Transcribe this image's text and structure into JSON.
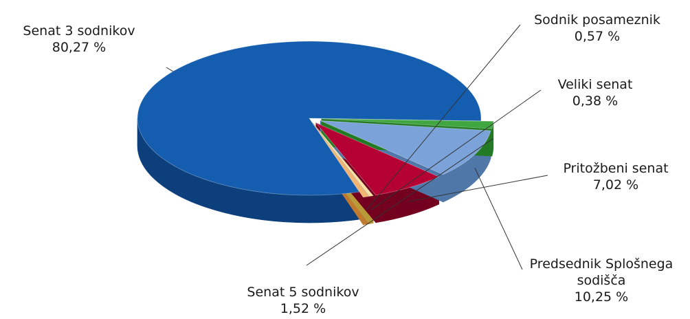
{
  "chart_data": {
    "type": "pie",
    "title": "",
    "style": "3d",
    "legend": "none",
    "slices": [
      {
        "label": "Senat 3 sodnikov",
        "value": 80.27,
        "value_label": "80,27 %",
        "color": "#155EAF",
        "side_color": "#0D3F7D"
      },
      {
        "label": "Sodnik posameznik",
        "value": 0.57,
        "value_label": "0,57 %",
        "color": "#F2B570",
        "side_color": "#C07A30"
      },
      {
        "label": "Veliki senat",
        "value": 0.38,
        "value_label": "0,38 %",
        "color": "#F4E3A0",
        "side_color": "#B89A3A"
      },
      {
        "label": "Pritožbeni senat",
        "value": 7.02,
        "value_label": "7,02 %",
        "color": "#B50033",
        "side_color": "#72001E"
      },
      {
        "label": "Predsednik Splošnega sodišča",
        "value": 10.25,
        "value_label": "10,25 %",
        "color": "#7BA3D9",
        "side_color": "#4F77A8"
      },
      {
        "label": "Senat 5 sodnikov",
        "value": 1.52,
        "value_label": "1,52 %",
        "color": "#3FA640",
        "side_color": "#237A25"
      }
    ]
  }
}
